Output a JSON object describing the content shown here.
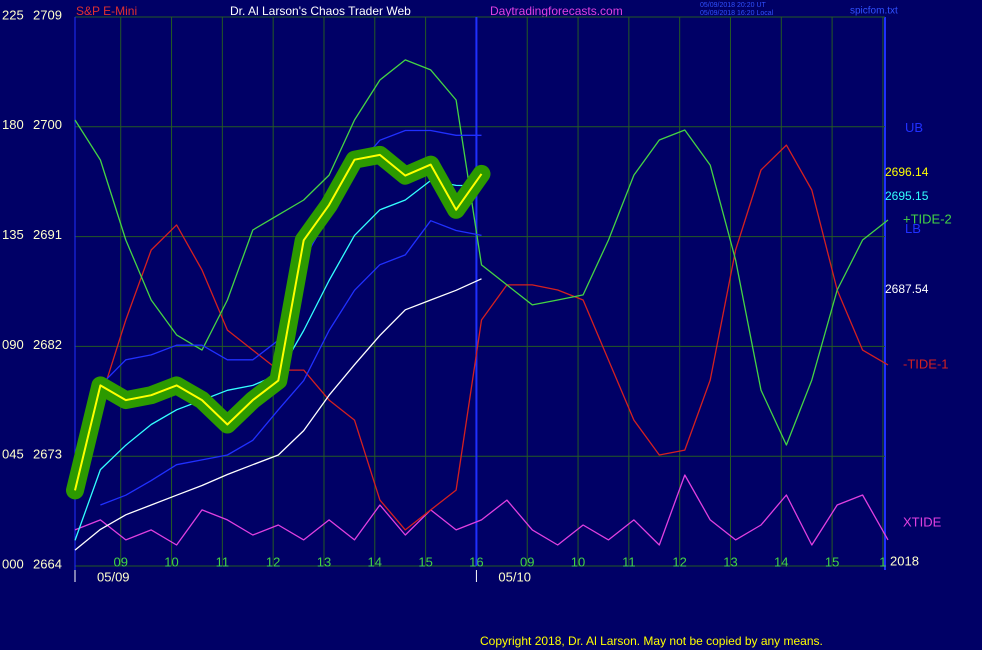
{
  "chart_data": {
    "type": "line",
    "title": "Dr. Al Larson's Chaos Trader Web",
    "subtitle": "S&P E-Mini",
    "website": "Daytradingforecasts.com",
    "timestamps": [
      "05/09/2018 20:20 UT",
      "05/09/2018 16:20 Local"
    ],
    "file": "spicfom.txt",
    "copyright": "Copyright 2018, Dr. Al Larson. May not be copied by any means.",
    "year": "2018",
    "dates": [
      {
        "value": -0.9,
        "label": "05/09"
      },
      {
        "value": 7,
        "label": "05/10"
      }
    ],
    "x": [
      -0.9,
      -0.4,
      0.1,
      0.6,
      1.1,
      1.6,
      2.1,
      2.6,
      3.1,
      3.6,
      4.1,
      4.6,
      5.1,
      5.6,
      6.1,
      6.6,
      7.1,
      7.6,
      8.1,
      8.6,
      9.1,
      9.6,
      10.1,
      10.6,
      11.1,
      11.6,
      12.1,
      12.6,
      13.1,
      13.6,
      14.1,
      14.6,
      15.1
    ],
    "xlim": [
      -0.9,
      15.1
    ],
    "xticks": [
      {
        "value": 0,
        "label": "09"
      },
      {
        "value": 1,
        "label": "10"
      },
      {
        "value": 2,
        "label": "11"
      },
      {
        "value": 3,
        "label": "12"
      },
      {
        "value": 4,
        "label": "13"
      },
      {
        "value": 5,
        "label": "14"
      },
      {
        "value": 6,
        "label": "15"
      },
      {
        "value": 7,
        "label": "16"
      },
      {
        "value": 8,
        "label": "09"
      },
      {
        "value": 9,
        "label": "10"
      },
      {
        "value": 10,
        "label": "11"
      },
      {
        "value": 11,
        "label": "12"
      },
      {
        "value": 12,
        "label": "13"
      },
      {
        "value": 13,
        "label": "14"
      },
      {
        "value": 14,
        "label": "15"
      },
      {
        "value": 15,
        "label": "1"
      }
    ],
    "ylim": [
      2664,
      2709
    ],
    "yticks": [
      2664,
      2673,
      2682,
      2691,
      2700,
      2709
    ],
    "y2lim": [
      0,
      225
    ],
    "y2ticks": [
      {
        "value": 0,
        "label": "000"
      },
      {
        "value": 45,
        "label": "045"
      },
      {
        "value": 90,
        "label": "090"
      },
      135,
      180,
      225
    ],
    "grid": true,
    "series": [
      {
        "name": "XTIDE",
        "color": "#e040e0",
        "axis": "y2",
        "values": [
          14.8,
          18.9,
          10.7,
          14.8,
          8.6,
          23.0,
          18.9,
          12.7,
          16.8,
          10.7,
          18.9,
          10.7,
          25.0,
          12.7,
          23.0,
          14.8,
          18.9,
          27.0,
          14.8,
          8.6,
          16.8,
          10.7,
          18.9,
          8.6,
          37.3,
          18.9,
          10.7,
          16.8,
          29.1,
          8.6,
          25.0,
          29.1,
          10.7
        ]
      },
      {
        "name": "-TIDE-1",
        "color": "#d42020",
        "axis": "y2",
        "values": [
          43.4,
          68.0,
          100.8,
          129.5,
          139.8,
          121.3,
          96.7,
          88.5,
          80.3,
          80.3,
          68.0,
          59.8,
          27.0,
          14.8,
          23.0,
          31.1,
          100.8,
          115.2,
          115.2,
          113.1,
          109.0,
          84.4,
          59.8,
          45.5,
          47.5,
          76.2,
          129.5,
          162.3,
          172.5,
          154.1,
          113.1,
          88.5,
          82.4
        ]
      },
      {
        "name": "+TIDE-2",
        "color": "#44d444",
        "axis": "y2",
        "values": [
          182.8,
          166.4,
          133.6,
          109.0,
          94.7,
          88.5,
          109.0,
          137.7,
          143.9,
          150.0,
          160.2,
          182.8,
          199.2,
          207.4,
          203.3,
          191.0,
          123.4,
          115.2,
          107.0,
          109.0,
          111.1,
          133.6,
          160.2,
          174.6,
          178.7,
          164.3,
          125.4,
          72.1,
          49.6,
          76.2,
          113.1,
          133.6,
          141.8
        ]
      },
      {
        "name": "UB",
        "color": "#2030ff",
        "values": [
          null,
          2678.8,
          2680.9,
          2681.3,
          2682.1,
          2682.1,
          2680.9,
          2680.9,
          2682.5,
          2689.1,
          2692.8,
          2696.5,
          2698.9,
          2699.7,
          2699.7,
          2699.3,
          2699.3,
          null,
          null,
          null,
          null,
          null,
          null,
          null,
          null,
          null,
          null,
          null,
          null,
          null,
          null,
          null,
          null
        ]
      },
      {
        "name": "LB",
        "color": "#2030ff",
        "values": [
          null,
          2669.0,
          2669.8,
          2671.0,
          2672.3,
          2672.7,
          2673.1,
          2674.3,
          2676.8,
          2679.2,
          2683.3,
          2686.6,
          2688.7,
          2689.5,
          2692.3,
          2691.5,
          2691.1,
          null,
          null,
          null,
          null,
          null,
          null,
          null,
          null,
          null,
          null,
          null,
          null,
          null,
          null,
          null,
          null
        ]
      },
      {
        "color": "#ffffff",
        "values": [
          2665.3,
          2667.0,
          2668.2,
          2669.0,
          2669.8,
          2670.6,
          2671.5,
          2672.3,
          2673.1,
          2675.1,
          2678.0,
          2680.5,
          2682.9,
          2685.0,
          2685.8,
          2686.6,
          2687.54,
          null,
          null,
          null,
          null,
          null,
          null,
          null,
          null,
          null,
          null,
          null,
          null,
          null,
          null,
          null,
          null
        ]
      },
      {
        "color": "#33ffff",
        "values": [
          2666.1,
          2671.9,
          2673.9,
          2675.6,
          2676.8,
          2677.6,
          2678.4,
          2678.8,
          2679.7,
          2683.3,
          2687.4,
          2691.1,
          2693.2,
          2694.0,
          2695.6,
          2695.2,
          2695.15,
          null,
          null,
          null,
          null,
          null,
          null,
          null,
          null,
          null,
          null,
          null,
          null,
          null,
          null,
          null,
          null
        ]
      },
      {
        "color": "#ffff00",
        "glow": "#2c9a00",
        "values": [
          2670.2,
          2678.8,
          2677.6,
          2678.0,
          2678.8,
          2677.6,
          2675.6,
          2677.6,
          2679.2,
          2690.7,
          2693.6,
          2697.3,
          2697.7,
          2696.0,
          2696.9,
          2693.2,
          2696.14,
          null,
          null,
          null,
          null,
          null,
          null,
          null,
          null,
          null,
          null,
          null,
          null,
          null,
          null,
          null,
          null
        ]
      }
    ]
  }
}
